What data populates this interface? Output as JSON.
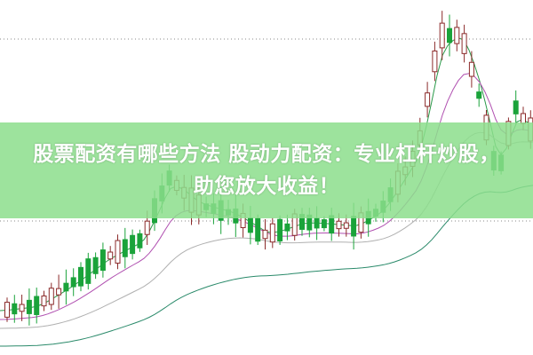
{
  "headline": {
    "line1": "股票配资有哪些方法 股动力配资：专业杠杆炒股，",
    "line2": "助您放大收益！"
  },
  "colors": {
    "banner": "#8cde8c",
    "candle_up": "#8b2a2a",
    "candle_down": "#1aa33a",
    "ma_green": "#2a9a4a",
    "ma_purple": "#b050b0",
    "ma_gray": "#b0b0b0",
    "ma_teal": "#2a8a6a"
  }
}
